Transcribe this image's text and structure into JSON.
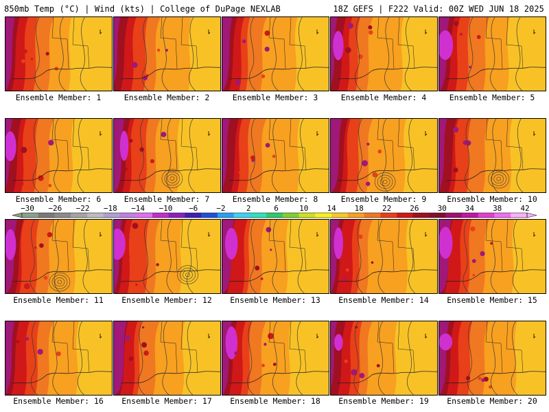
{
  "header": {
    "left": "850mb Temp (°C) | Wind (kts) | College of DuPage NEXLAB",
    "right": "18Z GEFS | F222 Valid: 00Z WED JUN 18 2025"
  },
  "colorbar": {
    "labels": [
      "−30",
      "−26",
      "−22",
      "−18",
      "−14",
      "−10",
      "−6",
      "−2",
      "2",
      "6",
      "10",
      "14",
      "18",
      "22",
      "26",
      "30",
      "34",
      "38",
      "42"
    ],
    "colors": [
      "#8aa088",
      "#7a7a7a",
      "#8c8c8c",
      "#a4a4a4",
      "#bcbcbc",
      "#b0a0d0",
      "#c080e0",
      "#e070f0",
      "#c030c8",
      "#8a20c0",
      "#4020b0",
      "#2050d8",
      "#2aa0f0",
      "#40d0f0",
      "#30e0c0",
      "#30c870",
      "#80d030",
      "#d0e020",
      "#f8f020",
      "#f8c828",
      "#f8a020",
      "#f07820",
      "#e84018",
      "#d01818",
      "#a01020",
      "#801030",
      "#a01070",
      "#c018a0",
      "#e040d0",
      "#f070f0",
      "#f8b0f8"
    ]
  },
  "panels": [
    {
      "label": "Ensemble Member: 1",
      "variant": 1
    },
    {
      "label": "Ensemble Member: 2",
      "variant": 2
    },
    {
      "label": "Ensemble Member: 3",
      "variant": 3
    },
    {
      "label": "Ensemble Member: 4",
      "variant": 4
    },
    {
      "label": "Ensemble Member: 5",
      "variant": 5
    },
    {
      "label": "Ensemble Member: 6",
      "variant": 6
    },
    {
      "label": "Ensemble Member: 7",
      "variant": 7
    },
    {
      "label": "Ensemble Member: 8",
      "variant": 8
    },
    {
      "label": "Ensemble Member: 9",
      "variant": 9
    },
    {
      "label": "Ensemble Member: 10",
      "variant": 10
    },
    {
      "label": "Ensemble Member: 11",
      "variant": 11
    },
    {
      "label": "Ensemble Member: 12",
      "variant": 12
    },
    {
      "label": "Ensemble Member: 13",
      "variant": 13
    },
    {
      "label": "Ensemble Member: 14",
      "variant": 14
    },
    {
      "label": "Ensemble Member: 15",
      "variant": 15
    },
    {
      "label": "Ensemble Member: 16",
      "variant": 16
    },
    {
      "label": "Ensemble Member: 17",
      "variant": 17
    },
    {
      "label": "Ensemble Member: 18",
      "variant": 18
    },
    {
      "label": "Ensemble Member: 19",
      "variant": 19
    },
    {
      "label": "Ensemble Member: 20",
      "variant": 20
    }
  ],
  "palette": {
    "magenta": "#d030d0",
    "purple": "#a01878",
    "maroon": "#a01020",
    "deep_red": "#d01818",
    "red": "#e84018",
    "orange_red": "#f07820",
    "orange": "#f8a020",
    "light_orange": "#f8c828",
    "yellow": "#f8f020",
    "contour": "#3a3a3a",
    "coast": "#202020"
  }
}
